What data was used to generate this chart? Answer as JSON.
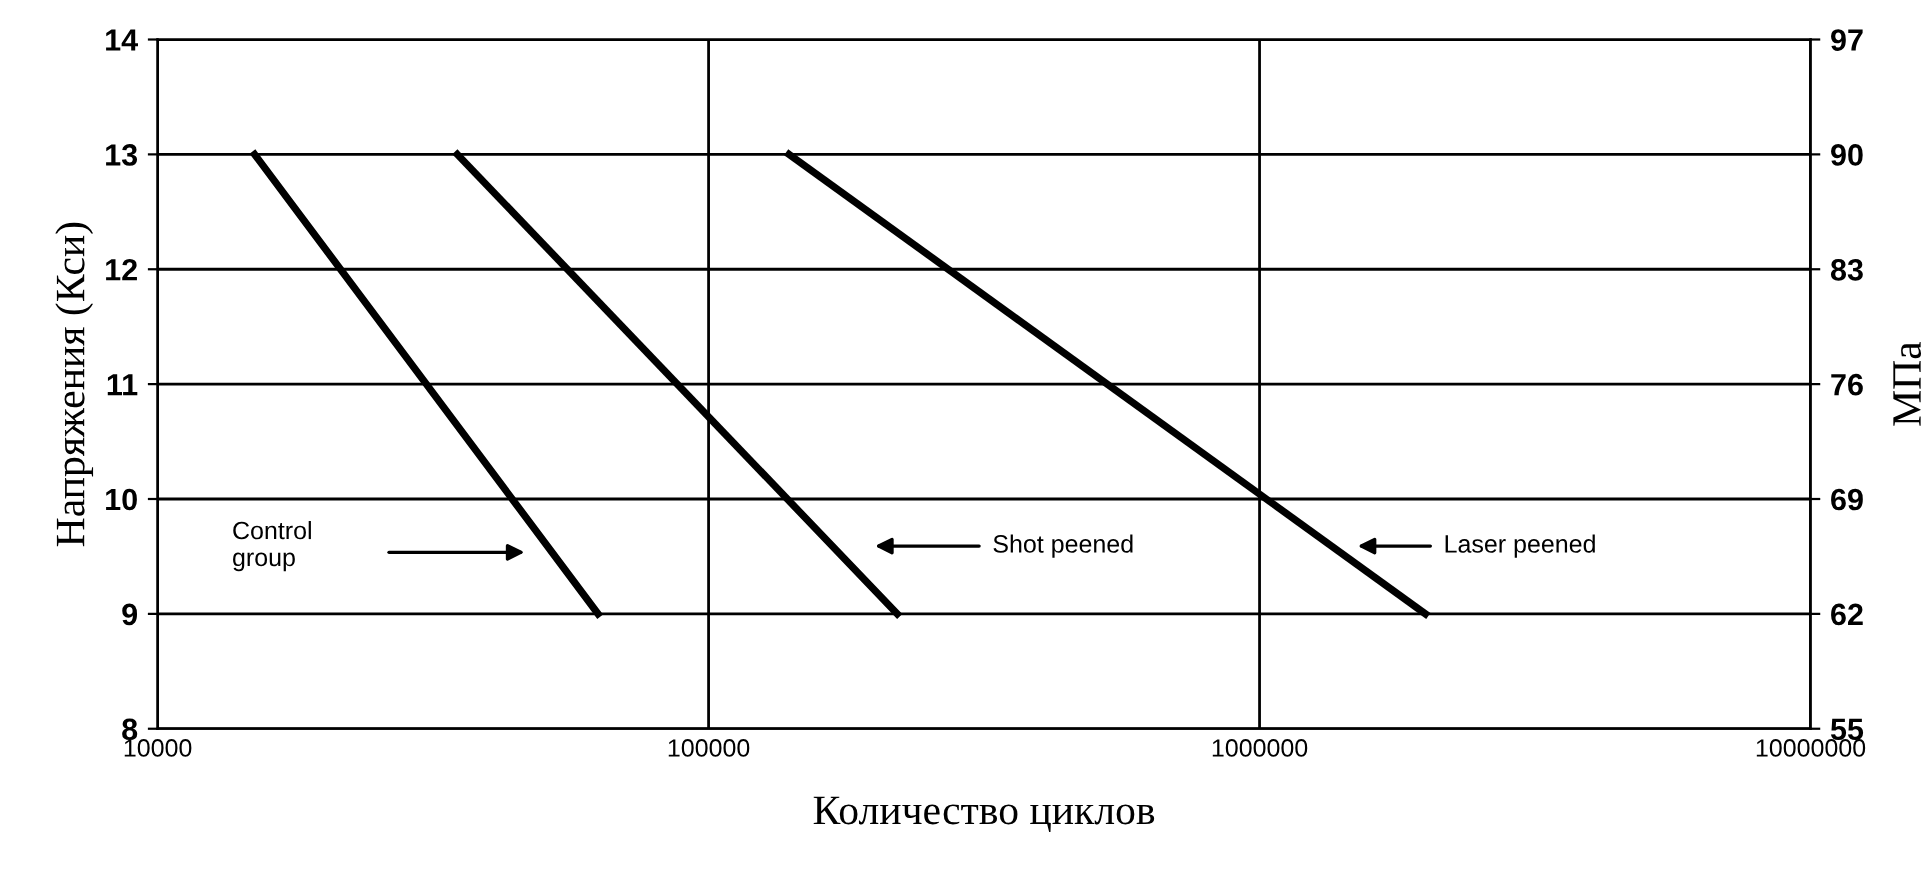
{
  "chart_data": {
    "type": "line",
    "xlabel": "Количество циклов",
    "ylabel": "Напряжения (Кси)",
    "y2label": "МПа",
    "log": "x",
    "grid": true,
    "legend": false,
    "marker": "none",
    "line_style": "solid",
    "xlim": [
      10000,
      10000000
    ],
    "xticks": [
      10000,
      100000,
      1000000,
      10000000
    ],
    "ylim": [
      8,
      14
    ],
    "yticks": [
      8,
      9,
      10,
      11,
      12,
      13,
      14
    ],
    "y2lim": [
      55,
      97
    ],
    "y2ticks": [
      55,
      62,
      69,
      76,
      83,
      90,
      97
    ],
    "series": [
      {
        "color": "#000000",
        "x": [
          15000,
          63000
        ],
        "values": [
          13,
          9
        ]
      },
      {
        "color": "#000000",
        "x": [
          35000,
          220000
        ],
        "values": [
          13,
          9
        ]
      },
      {
        "color": "#000000",
        "x": [
          140000,
          2000000
        ],
        "values": [
          13,
          9
        ]
      }
    ],
    "annotations": [
      "Control\ngroup",
      "Shot peened",
      "Laser peened"
    ]
  }
}
